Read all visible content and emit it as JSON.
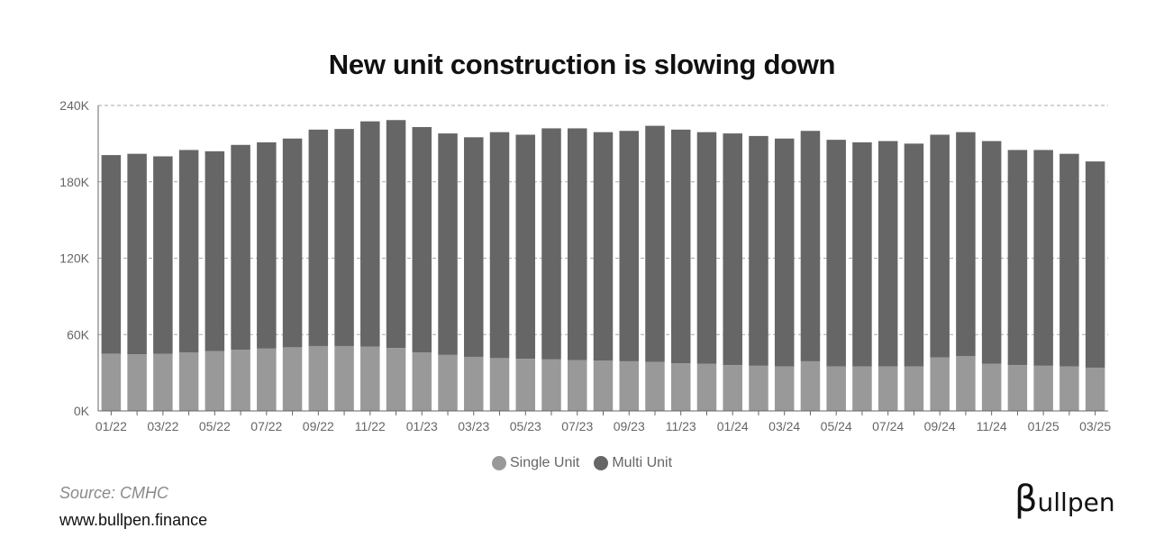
{
  "title": "New unit construction is slowing down",
  "source": "Source: CMHC",
  "website": "www.bullpen.finance",
  "brand": {
    "symbol": "β",
    "text": "ullpen"
  },
  "colors": {
    "single": "#999999",
    "multi": "#666666",
    "grid": "#aaaaaa",
    "axis": "#666666"
  },
  "chart_data": {
    "type": "bar",
    "stacked": true,
    "categories": [
      "01/22",
      "02/22",
      "03/22",
      "04/22",
      "05/22",
      "06/22",
      "07/22",
      "08/22",
      "09/22",
      "10/22",
      "11/22",
      "12/22",
      "01/23",
      "02/23",
      "03/23",
      "04/23",
      "05/23",
      "06/23",
      "07/23",
      "08/23",
      "09/23",
      "10/23",
      "11/23",
      "12/23",
      "01/24",
      "02/24",
      "03/24",
      "04/24",
      "05/24",
      "06/24",
      "07/24",
      "08/24",
      "09/24",
      "10/24",
      "11/24",
      "12/24",
      "01/25",
      "02/25",
      "03/25"
    ],
    "tick_labels": [
      "01/22",
      "",
      "03/22",
      "",
      "05/22",
      "",
      "07/22",
      "",
      "09/22",
      "",
      "11/22",
      "",
      "01/23",
      "",
      "03/23",
      "",
      "05/23",
      "",
      "07/23",
      "",
      "09/23",
      "",
      "11/23",
      "",
      "01/24",
      "",
      "03/24",
      "",
      "05/24",
      "",
      "07/24",
      "",
      "09/24",
      "",
      "11/24",
      "",
      "01/25",
      "",
      "03/25"
    ],
    "series": [
      {
        "name": "Single Unit",
        "values": [
          45000,
          44500,
          44800,
          46000,
          47000,
          48000,
          49000,
          50000,
          51000,
          51000,
          50500,
          49500,
          46000,
          44000,
          42500,
          41500,
          41000,
          40500,
          40000,
          39500,
          39000,
          38500,
          37500,
          37000,
          36000,
          35500,
          35000,
          39000,
          35000,
          35000,
          35000,
          35000,
          42000,
          43000,
          37000,
          36000,
          35500,
          35000,
          34000
        ]
      },
      {
        "name": "Multi Unit",
        "values": [
          156000,
          157500,
          155200,
          159000,
          157000,
          161000,
          162000,
          164000,
          170000,
          170500,
          177000,
          179000,
          177000,
          174000,
          172500,
          177500,
          176000,
          181500,
          182000,
          179500,
          181000,
          185500,
          183500,
          182000,
          182000,
          180500,
          179000,
          181000,
          178000,
          176000,
          177000,
          175000,
          175000,
          176000,
          175000,
          169000,
          169500,
          167000,
          162000
        ]
      }
    ],
    "y_ticks": [
      "0K",
      "60K",
      "120K",
      "180K",
      "240K"
    ],
    "ylim": [
      0,
      240000
    ],
    "grid": true,
    "legend_position": "bottom-center"
  }
}
